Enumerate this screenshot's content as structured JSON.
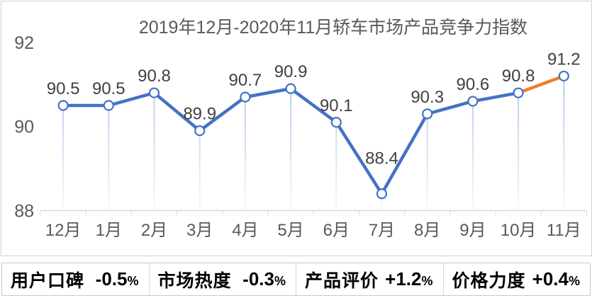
{
  "chart_data": {
    "type": "line",
    "title": "2019年12月-2020年11月轿车市场产品竞争力指数",
    "categories": [
      "12月",
      "1月",
      "2月",
      "3月",
      "4月",
      "5月",
      "6月",
      "7月",
      "8月",
      "9月",
      "10月",
      "11月"
    ],
    "series": [
      {
        "name": "产品竞争力指数",
        "values": [
          90.5,
          90.5,
          90.8,
          89.9,
          90.7,
          90.9,
          90.1,
          88.4,
          90.3,
          90.6,
          90.8,
          91.2
        ]
      }
    ],
    "ylim": [
      88,
      92
    ],
    "yticks": [
      92,
      90,
      88
    ],
    "grid": false,
    "legend": "none",
    "annotations": "last segment (10月 to 11月) highlighted in orange; each point has a light-blue vertical drop line to the x-axis; data labels shown above every point",
    "colors": {
      "line": "#4472C4",
      "last_segment": "#ED7D31",
      "marker_fill": "#FFFFFF",
      "marker_stroke": "#4472C4",
      "drop_line_top": "#b3c6ea",
      "drop_line_bottom": "#f5f8fd",
      "axis": "#d9d9d9",
      "data_label": "#404040",
      "axis_text": "#595959",
      "title_text": "#595959"
    }
  },
  "footer_stats": [
    {
      "label": "用户口碑",
      "value": "-0.5",
      "unit": "%"
    },
    {
      "label": "市场热度",
      "value": "-0.3",
      "unit": "%"
    },
    {
      "label": "产品评价",
      "value": "+1.2",
      "unit": "%"
    },
    {
      "label": "价格力度",
      "value": "+0.4",
      "unit": "%"
    }
  ]
}
